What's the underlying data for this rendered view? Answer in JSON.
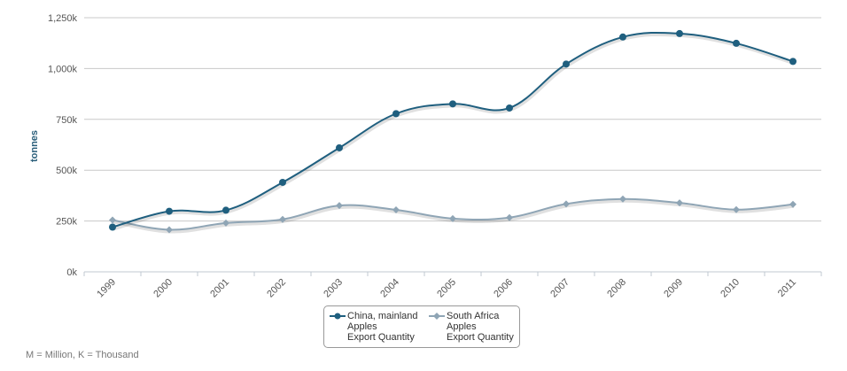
{
  "chart_data": {
    "type": "line",
    "x": [
      "1999",
      "2000",
      "2001",
      "2002",
      "2003",
      "2004",
      "2005",
      "2006",
      "2007",
      "2008",
      "2009",
      "2010",
      "2011"
    ],
    "series": [
      {
        "name_lines": [
          "China, mainland",
          "Apples",
          "Export Quantity"
        ],
        "values": [
          220,
          298,
          303,
          440,
          610,
          778,
          826,
          806,
          1022,
          1155,
          1172,
          1124,
          1035
        ],
        "color": "#1f5f7f",
        "marker": "circle"
      },
      {
        "name_lines": [
          "South Africa",
          "Apples",
          "Export Quantity"
        ],
        "values": [
          255,
          207,
          240,
          258,
          326,
          305,
          262,
          267,
          334,
          358,
          339,
          306,
          332
        ],
        "color": "#8fa5b5",
        "marker": "diamond"
      }
    ],
    "y_ticks": [
      "0k",
      "250k",
      "500k",
      "750k",
      "1,000k",
      "1,250k"
    ],
    "ylim": [
      0,
      1250
    ],
    "ylabel": "tonnes",
    "grid": true
  },
  "footnote": "M = Million, K = Thousand"
}
